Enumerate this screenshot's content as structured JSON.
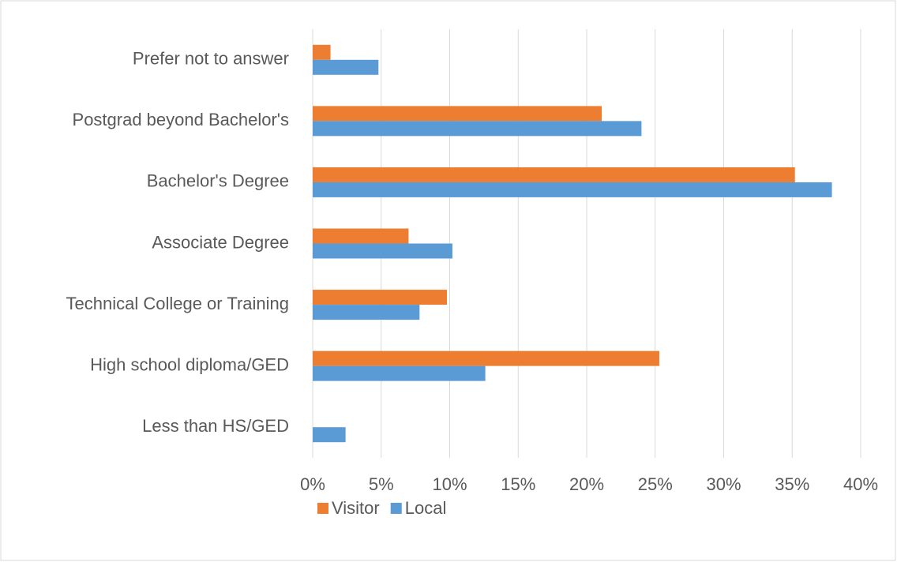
{
  "chart_data": {
    "type": "barh",
    "categories": [
      "Prefer not to answer",
      "Postgrad beyond Bachelor's",
      "Bachelor's Degree",
      "Associate Degree",
      "Technical College or Training",
      "High school diploma/GED",
      "Less than HS/GED"
    ],
    "series": [
      {
        "name": "Visitor",
        "color": "#ed7d31",
        "values": [
          1.3,
          21.1,
          35.2,
          7.0,
          9.8,
          25.3,
          0
        ]
      },
      {
        "name": "Local",
        "color": "#5b9bd5",
        "values": [
          4.8,
          24.0,
          37.9,
          10.2,
          7.8,
          12.6,
          2.4
        ]
      }
    ],
    "xlim": [
      0,
      40
    ],
    "xticks": [
      {
        "value": 0,
        "label": "0%"
      },
      {
        "value": 5,
        "label": "5%"
      },
      {
        "value": 10,
        "label": "10%"
      },
      {
        "value": 15,
        "label": "15%"
      },
      {
        "value": 20,
        "label": "20%"
      },
      {
        "value": 25,
        "label": "25%"
      },
      {
        "value": 30,
        "label": "30%"
      },
      {
        "value": 35,
        "label": "35%"
      },
      {
        "value": 40,
        "label": "40%"
      }
    ],
    "grid": true,
    "legend": "bottom"
  }
}
